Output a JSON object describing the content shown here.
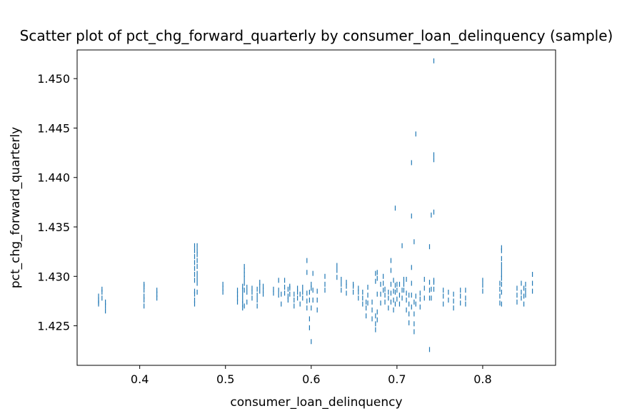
{
  "chart_data": {
    "type": "scatter",
    "title": "Scatter plot of pct_chg_forward_quarterly by consumer_loan_delinquency (sample)",
    "xlabel": "consumer_loan_delinquency",
    "ylabel": "pct_chg_forward_quarterly",
    "xlim": [
      0.327,
      0.885
    ],
    "ylim": [
      1.421,
      1.4529
    ],
    "xticks": [
      "0.4",
      "0.5",
      "0.6",
      "0.7",
      "0.8"
    ],
    "yticks": [
      "1.425",
      "1.430",
      "1.435",
      "1.440",
      "1.445",
      "1.450"
    ],
    "grid": false,
    "marker": "|",
    "color": "#1f77b4",
    "series": [
      {
        "x": [
          0.352,
          0.352,
          0.352,
          0.352,
          0.356,
          0.356,
          0.356,
          0.36,
          0.36,
          0.36,
          0.405,
          0.405,
          0.405,
          0.405,
          0.405,
          0.405,
          0.42,
          0.42,
          0.42,
          0.464,
          0.464,
          0.464,
          0.464,
          0.464,
          0.464,
          0.464,
          0.464,
          0.464,
          0.464,
          0.464,
          0.467,
          0.467,
          0.467,
          0.467,
          0.467,
          0.467,
          0.467,
          0.467,
          0.467,
          0.497,
          0.497,
          0.497,
          0.514,
          0.514,
          0.514,
          0.514,
          0.52,
          0.52,
          0.52,
          0.52,
          0.52,
          0.52,
          0.522,
          0.522,
          0.522,
          0.522,
          0.522,
          0.522,
          0.522,
          0.525,
          0.525,
          0.525,
          0.531,
          0.531,
          0.531,
          0.537,
          0.537,
          0.537,
          0.537,
          0.54,
          0.54,
          0.54,
          0.544,
          0.544,
          0.544,
          0.556,
          0.556,
          0.562,
          0.562,
          0.562,
          0.565,
          0.565,
          0.569,
          0.569,
          0.569,
          0.573,
          0.573,
          0.573,
          0.575,
          0.575,
          0.575,
          0.58,
          0.58,
          0.58,
          0.584,
          0.584,
          0.584,
          0.587,
          0.587,
          0.59,
          0.59,
          0.59,
          0.595,
          0.595,
          0.595,
          0.595,
          0.595,
          0.598,
          0.598,
          0.598,
          0.598,
          0.6,
          0.6,
          0.6,
          0.6,
          0.602,
          0.602,
          0.602,
          0.607,
          0.607,
          0.607,
          0.616,
          0.616,
          0.616,
          0.63,
          0.63,
          0.63,
          0.635,
          0.635,
          0.635,
          0.641,
          0.641,
          0.641,
          0.649,
          0.649,
          0.649,
          0.655,
          0.655,
          0.655,
          0.66,
          0.66,
          0.66,
          0.664,
          0.664,
          0.664,
          0.666,
          0.666,
          0.666,
          0.671,
          0.671,
          0.671,
          0.675,
          0.675,
          0.675,
          0.675,
          0.675,
          0.677,
          0.677,
          0.677,
          0.677,
          0.677,
          0.681,
          0.681,
          0.681,
          0.684,
          0.684,
          0.684,
          0.686,
          0.686,
          0.686,
          0.69,
          0.69,
          0.69,
          0.693,
          0.693,
          0.693,
          0.693,
          0.693,
          0.696,
          0.696,
          0.696,
          0.696,
          0.698,
          0.698,
          0.698,
          0.698,
          0.7,
          0.7,
          0.7,
          0.703,
          0.703,
          0.703,
          0.706,
          0.706,
          0.706,
          0.708,
          0.708,
          0.708,
          0.711,
          0.711,
          0.711,
          0.711,
          0.714,
          0.714,
          0.714,
          0.714,
          0.717,
          0.717,
          0.717,
          0.717,
          0.717,
          0.717,
          0.72,
          0.72,
          0.72,
          0.72,
          0.72,
          0.722,
          0.722,
          0.722,
          0.727,
          0.727,
          0.727,
          0.732,
          0.732,
          0.732,
          0.738,
          0.738,
          0.738,
          0.738,
          0.738,
          0.74,
          0.74,
          0.74,
          0.743,
          0.743,
          0.743,
          0.743,
          0.743,
          0.743,
          0.743,
          0.754,
          0.754,
          0.754,
          0.76,
          0.76,
          0.766,
          0.766,
          0.766,
          0.774,
          0.774,
          0.774,
          0.78,
          0.78,
          0.78,
          0.8,
          0.8,
          0.8,
          0.82,
          0.82,
          0.82,
          0.82,
          0.822,
          0.822,
          0.822,
          0.822,
          0.822,
          0.822,
          0.822,
          0.822,
          0.822,
          0.822,
          0.84,
          0.84,
          0.84,
          0.845,
          0.845,
          0.845,
          0.848,
          0.848,
          0.848,
          0.85,
          0.85,
          0.85,
          0.858,
          0.858,
          0.858
        ],
        "y": [
          1.4272,
          1.4276,
          1.428,
          1.4274,
          1.4278,
          1.4284,
          1.4287,
          1.4265,
          1.427,
          1.4274,
          1.427,
          1.4276,
          1.428,
          1.4286,
          1.429,
          1.4292,
          1.4278,
          1.4282,
          1.4286,
          1.4272,
          1.4276,
          1.4282,
          1.4296,
          1.4302,
          1.4308,
          1.4314,
          1.432,
          1.4326,
          1.4331,
          1.4285,
          1.4293,
          1.4298,
          1.4303,
          1.431,
          1.4316,
          1.4322,
          1.4326,
          1.4331,
          1.4284,
          1.4284,
          1.4288,
          1.4292,
          1.4274,
          1.4278,
          1.4282,
          1.4286,
          1.4268,
          1.4272,
          1.4276,
          1.4281,
          1.4286,
          1.429,
          1.427,
          1.4286,
          1.4293,
          1.4298,
          1.4302,
          1.4306,
          1.431,
          1.4274,
          1.4284,
          1.4289,
          1.4278,
          1.4284,
          1.4288,
          1.4281,
          1.4287,
          1.4276,
          1.427,
          1.4285,
          1.429,
          1.4294,
          1.4282,
          1.4286,
          1.429,
          1.4283,
          1.4287,
          1.4281,
          1.4286,
          1.4296,
          1.4272,
          1.4282,
          1.4283,
          1.4289,
          1.4296,
          1.4276,
          1.428,
          1.4287,
          1.4282,
          1.4288,
          1.429,
          1.427,
          1.4276,
          1.4282,
          1.4278,
          1.4284,
          1.4288,
          1.4272,
          1.4282,
          1.4278,
          1.4284,
          1.4289,
          1.4268,
          1.4275,
          1.4283,
          1.4304,
          1.4316,
          1.4257,
          1.4248,
          1.4276,
          1.4284,
          1.4234,
          1.4268,
          1.4288,
          1.4292,
          1.4276,
          1.4286,
          1.4303,
          1.4266,
          1.4276,
          1.4285,
          1.4286,
          1.4292,
          1.43,
          1.4299,
          1.4306,
          1.4311,
          1.4286,
          1.4292,
          1.4297,
          1.4283,
          1.429,
          1.4294,
          1.4284,
          1.429,
          1.4292,
          1.4278,
          1.4284,
          1.4288,
          1.4272,
          1.4278,
          1.4284,
          1.426,
          1.4268,
          1.4274,
          1.4273,
          1.4281,
          1.4289,
          1.4257,
          1.4266,
          1.4274,
          1.4246,
          1.4252,
          1.426,
          1.4295,
          1.4303,
          1.4256,
          1.4264,
          1.4282,
          1.4298,
          1.4304,
          1.4273,
          1.4282,
          1.4292,
          1.4286,
          1.4293,
          1.43,
          1.4274,
          1.4281,
          1.4287,
          1.4268,
          1.4278,
          1.4284,
          1.4274,
          1.4283,
          1.4292,
          1.4306,
          1.4316,
          1.4266,
          1.4276,
          1.4285,
          1.4296,
          1.4272,
          1.4284,
          1.4291,
          1.4369,
          1.4277,
          1.4286,
          1.4292,
          1.4272,
          1.4281,
          1.4292,
          1.4278,
          1.4286,
          1.4331,
          1.4286,
          1.4292,
          1.4297,
          1.4266,
          1.4276,
          1.4283,
          1.4297,
          1.4253,
          1.4262,
          1.4272,
          1.4281,
          1.4269,
          1.4281,
          1.4293,
          1.4309,
          1.4361,
          1.4415,
          1.4244,
          1.4252,
          1.4262,
          1.4274,
          1.4335,
          1.4444,
          1.4272,
          1.428,
          1.4269,
          1.4277,
          1.4283,
          1.4278,
          1.4288,
          1.4297,
          1.4226,
          1.4278,
          1.4286,
          1.4294,
          1.433,
          1.4278,
          1.4287,
          1.4362,
          1.4287,
          1.4294,
          1.4296,
          1.4365,
          1.4418,
          1.4423,
          1.4518,
          1.4272,
          1.428,
          1.4286,
          1.4276,
          1.4284,
          1.4268,
          1.4275,
          1.4282,
          1.4273,
          1.428,
          1.4286,
          1.4272,
          1.4278,
          1.4286,
          1.4285,
          1.4291,
          1.4296,
          1.4273,
          1.428,
          1.4287,
          1.4293,
          1.4272,
          1.4284,
          1.4292,
          1.4298,
          1.4302,
          1.4307,
          1.4312,
          1.4318,
          1.4326,
          1.4329,
          1.4274,
          1.4281,
          1.4288,
          1.4278,
          1.4284,
          1.4293,
          1.4272,
          1.428,
          1.4288,
          1.4281,
          1.4286,
          1.4292,
          1.4285,
          1.4293,
          1.4302
        ]
      }
    ]
  }
}
